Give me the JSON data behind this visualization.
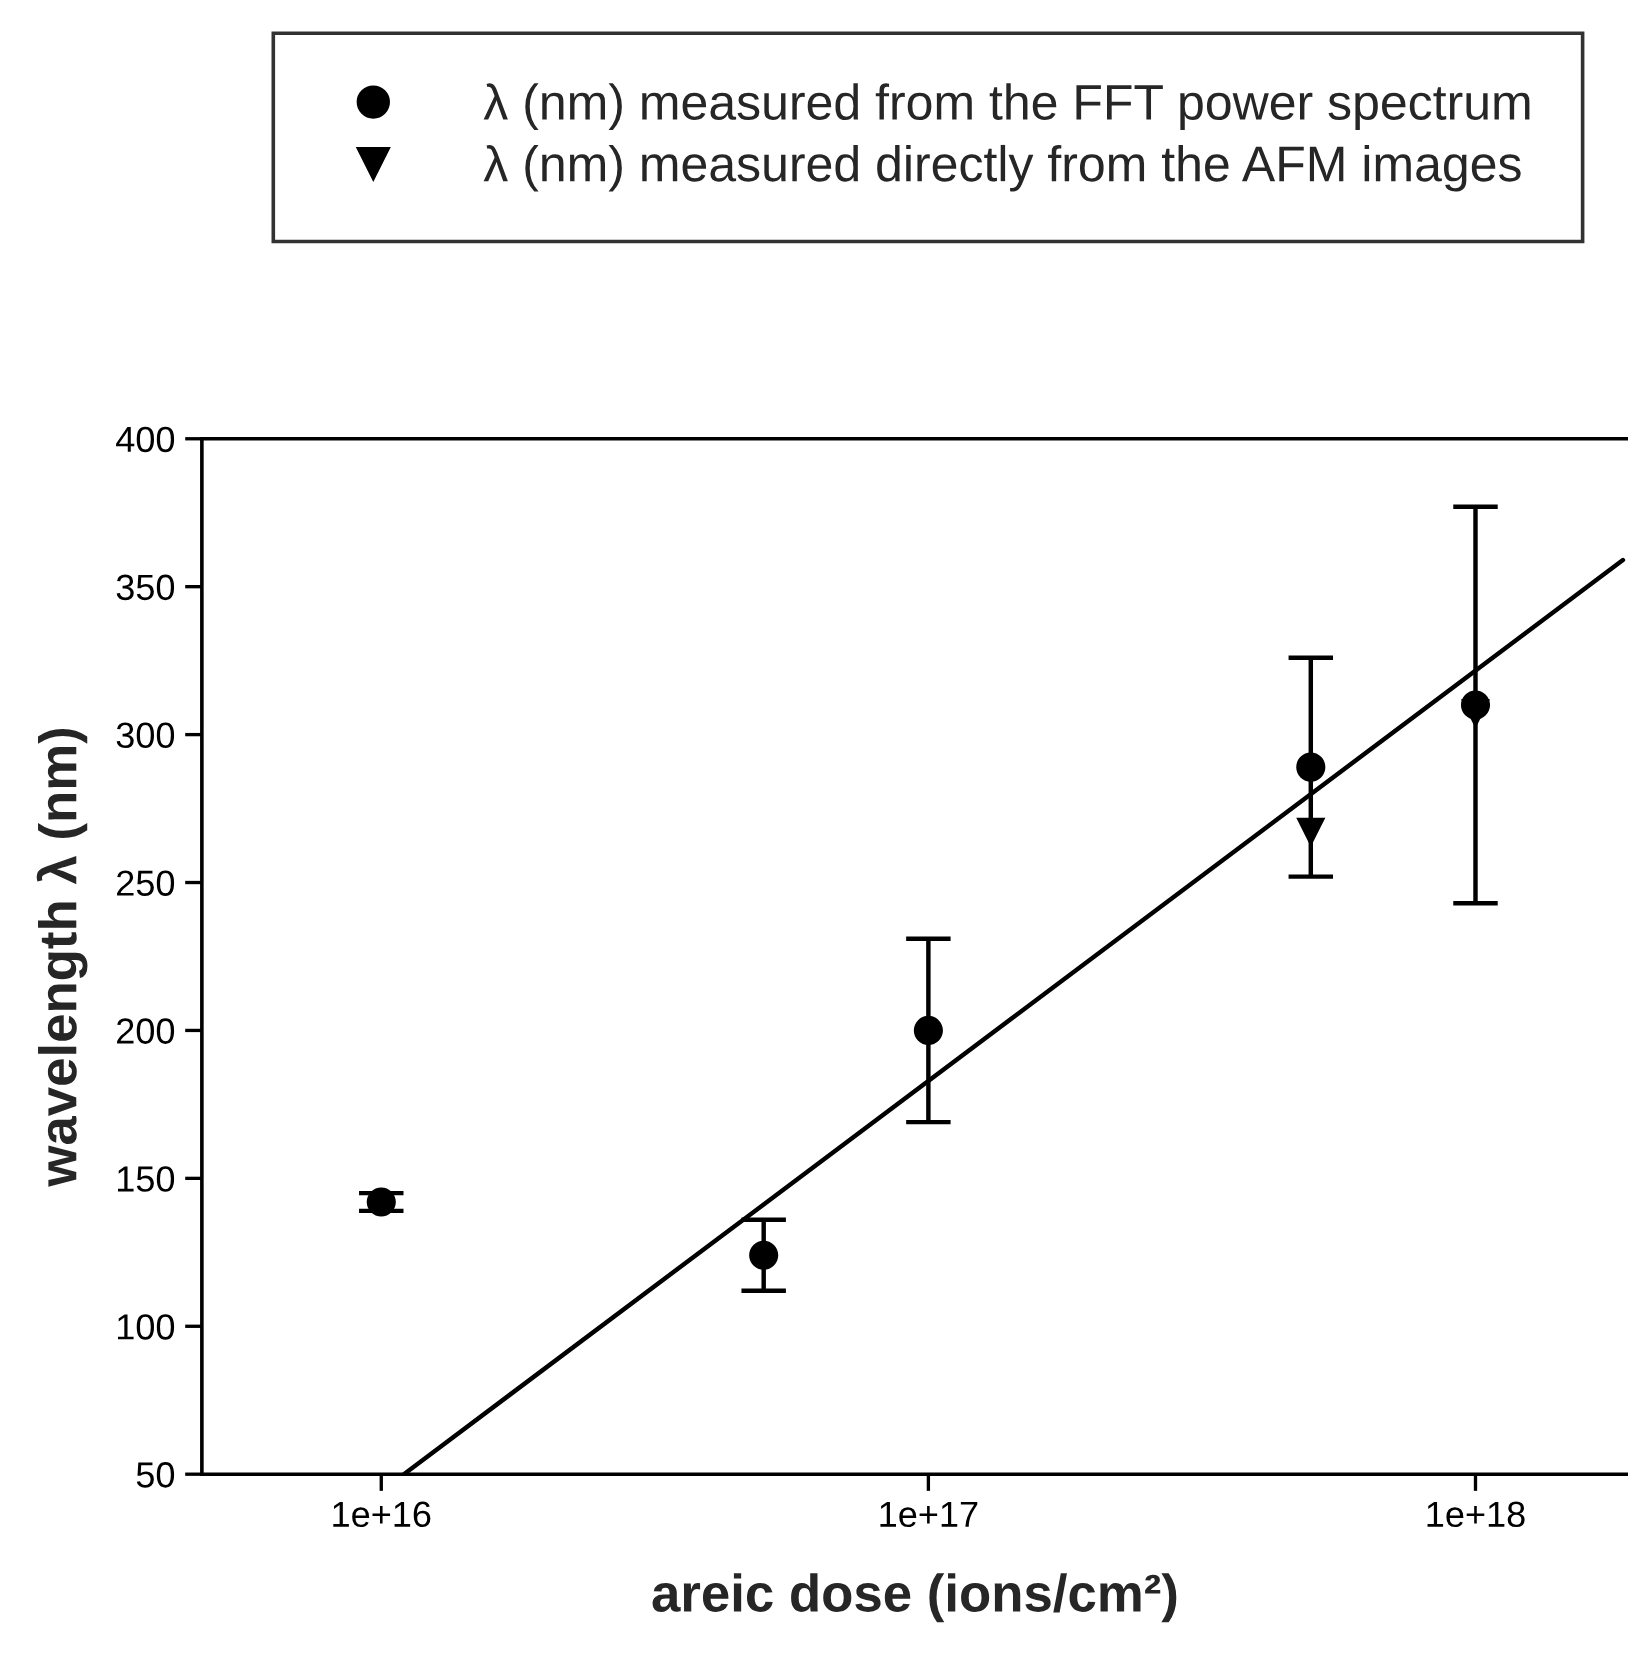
{
  "chart_data": {
    "type": "scatter",
    "xlabel": "areic dose (ions/cm²)",
    "ylabel": "wavelength λ (nm)",
    "x": [
      1e+16,
      5e+16,
      1e+17,
      5e+17,
      1e+18
    ],
    "series": [
      {
        "name": "λ (nm) measured from the FFT power spectrum",
        "color": "#000000",
        "marker": "circle",
        "values": [
          142,
          124,
          200,
          289,
          310
        ],
        "errors": [
          3,
          12,
          31,
          37,
          67
        ]
      },
      {
        "name": "λ (nm) measured directly from the AFM images",
        "color": "#000000",
        "marker": "triangle",
        "values": [
          null,
          null,
          null,
          267,
          307
        ]
      },
      {
        "type": "line",
        "color": "#000000",
        "x": [
          1.1e+16,
          1.86e+18
        ],
        "values": [
          50,
          359
        ]
      }
    ],
    "log": "x",
    "xlim": [
      4700000000000000.0,
      1.9e+18
    ],
    "xticks": [
      {
        "value": 1e+16,
        "label": "1e+16"
      },
      {
        "value": 1e+17,
        "label": "1e+17"
      },
      {
        "value": 1e+18,
        "label": "1e+18"
      }
    ],
    "ylim": [
      50,
      400
    ],
    "yticks": [
      50,
      100,
      150,
      200,
      250,
      300,
      350,
      400
    ],
    "grid": false,
    "legend": "top"
  }
}
